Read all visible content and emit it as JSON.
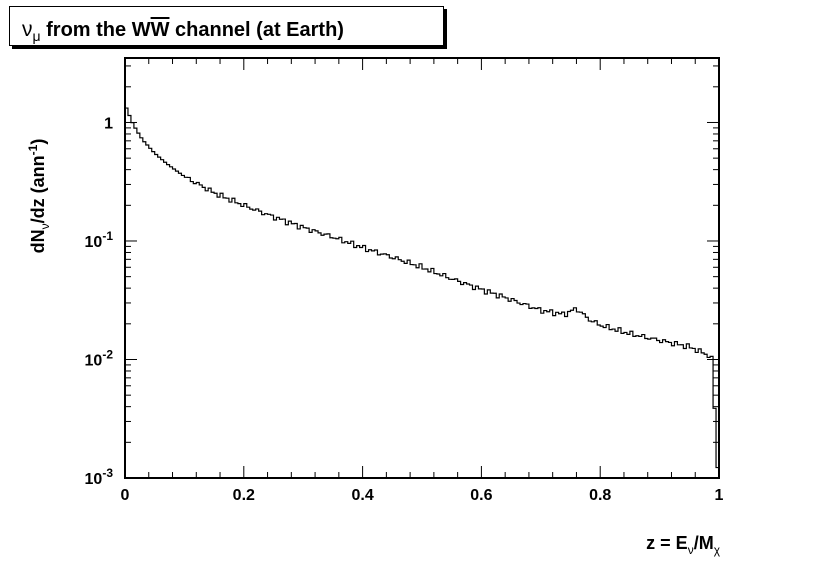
{
  "chart_data": {
    "type": "line",
    "subtype": "histogram-step",
    "title": {
      "nu": "ν",
      "mu": "μ",
      "text": " from the W",
      "w_bar": "W",
      "rest": " channel (at Earth)"
    },
    "xlabel": {
      "prefix": "z = E",
      "sub1": "ν",
      "mid": "/M",
      "sub2": "χ"
    },
    "ylabel": {
      "prefix": "dN",
      "sub": "ν",
      "mid": "/dz (ann",
      "sup": "-1",
      "suffix": ")"
    },
    "xlim": [
      0,
      1
    ],
    "ylim": [
      0.001,
      3.5
    ],
    "yscale": "log",
    "grid": false,
    "x_ticks": [
      {
        "value": 0,
        "label": "0"
      },
      {
        "value": 0.2,
        "label": "0.2"
      },
      {
        "value": 0.4,
        "label": "0.4"
      },
      {
        "value": 0.6,
        "label": "0.6"
      },
      {
        "value": 0.8,
        "label": "0.8"
      },
      {
        "value": 1,
        "label": "1"
      }
    ],
    "y_ticks": [
      {
        "value": 1,
        "base": "1",
        "exp": ""
      },
      {
        "value": 0.1,
        "base": "10",
        "exp": "-1"
      },
      {
        "value": 0.01,
        "base": "10",
        "exp": "-2"
      },
      {
        "value": 0.001,
        "base": "10",
        "exp": "-3"
      }
    ],
    "series": [
      {
        "x": [
          0.0,
          0.005,
          0.01,
          0.02,
          0.03,
          0.05,
          0.07,
          0.1,
          0.15,
          0.2,
          0.25,
          0.3,
          0.35,
          0.4,
          0.45,
          0.5,
          0.55,
          0.6,
          0.65,
          0.7,
          0.74,
          0.76,
          0.78,
          0.8,
          0.85,
          0.9,
          0.95,
          0.98,
          0.99,
          0.995,
          1.0
        ],
        "y": [
          1.4,
          1.25,
          1.05,
          0.85,
          0.71,
          0.55,
          0.45,
          0.35,
          0.255,
          0.2,
          0.16,
          0.13,
          0.108,
          0.088,
          0.073,
          0.06,
          0.048,
          0.039,
          0.032,
          0.026,
          0.024,
          0.027,
          0.022,
          0.0195,
          0.0165,
          0.0145,
          0.0128,
          0.011,
          0.01,
          0.0015,
          0.001
        ]
      }
    ]
  }
}
